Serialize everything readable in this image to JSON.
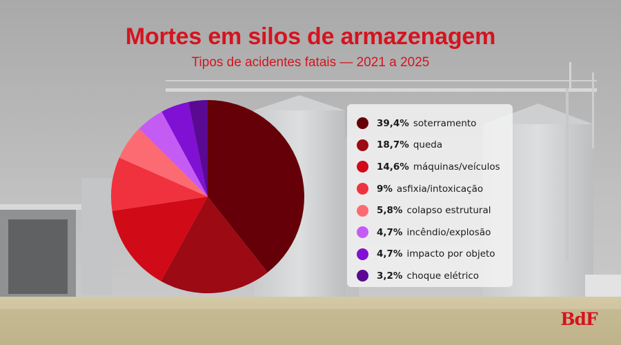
{
  "chart_data": {
    "type": "pie",
    "title": "Mortes em silos de armazenagem",
    "subtitle": "Tipos de acidentes fatais — 2021 a 2025",
    "legend_position": "right",
    "slices": [
      {
        "label": "soterramento",
        "value": 39.4,
        "value_text": "39,4%",
        "color": "#650008"
      },
      {
        "label": "queda",
        "value": 18.7,
        "value_text": "18,7%",
        "color": "#9c0a14"
      },
      {
        "label": "máquinas/veículos",
        "value": 14.6,
        "value_text": "14,6%",
        "color": "#d10a18"
      },
      {
        "label": "asfixia/intoxicação",
        "value": 9,
        "value_text": "9%",
        "color": "#f0323e"
      },
      {
        "label": "colapso estrutural",
        "value": 5.8,
        "value_text": "5,8%",
        "color": "#fd6b72"
      },
      {
        "label": "incêndio/explosão",
        "value": 4.7,
        "value_text": "4,7%",
        "color": "#c45cf4"
      },
      {
        "label": "impacto por objeto",
        "value": 4.7,
        "value_text": "4,7%",
        "color": "#8010d4"
      },
      {
        "label": "choque elétrico",
        "value": 3.2,
        "value_text": "3,2%",
        "color": "#5a0a92"
      }
    ]
  },
  "brand": {
    "logo_text": "BdF"
  },
  "background": {
    "description_icon": "grain-silo-photo"
  }
}
